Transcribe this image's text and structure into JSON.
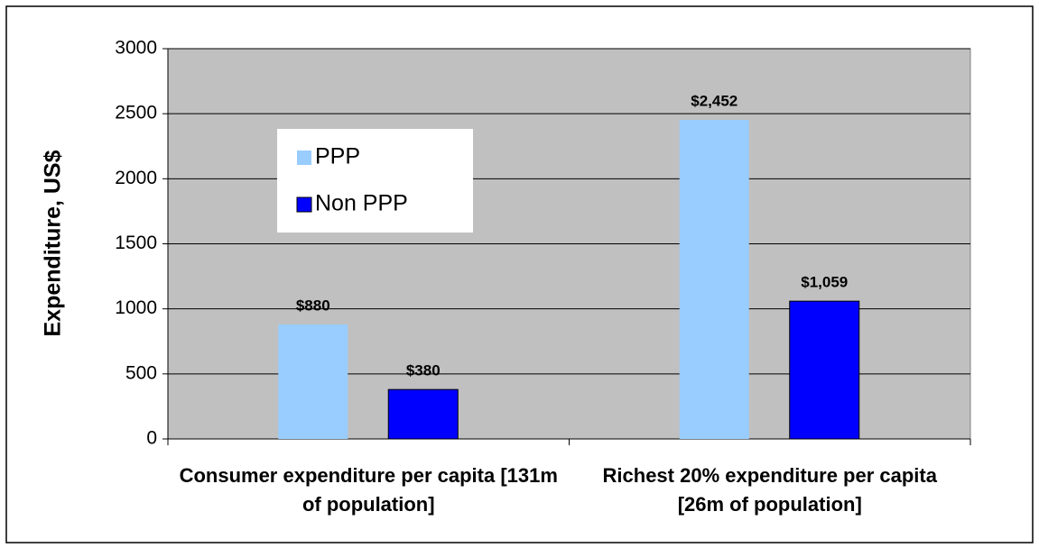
{
  "chart_data": {
    "type": "bar",
    "y_label": "Expenditure, US$",
    "categories": [
      "Consumer expenditure per capita [131m of population]",
      "Richest 20% expenditure per capita [26m of population]"
    ],
    "series": [
      {
        "name": "PPP",
        "color": "#99ccff",
        "values": [
          880,
          2452
        ],
        "value_labels": [
          "$880",
          "$2,452"
        ]
      },
      {
        "name": "Non PPP",
        "color": "#0000ff",
        "values": [
          380,
          1059
        ],
        "value_labels": [
          "$380",
          "$1,059"
        ]
      }
    ],
    "ylim": [
      0,
      3000
    ],
    "yticks": [
      0,
      500,
      1000,
      1500,
      2000,
      2500,
      3000
    ],
    "grid": true,
    "legend": "upper left"
  }
}
